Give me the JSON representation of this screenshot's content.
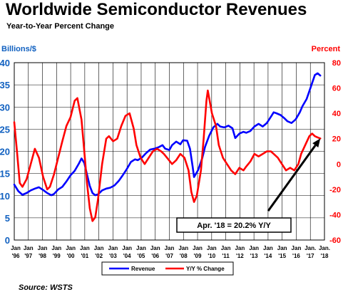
{
  "header": {
    "title": "Worldwide Semiconductor Revenues",
    "subtitle": "Year-to-Year Percent Change"
  },
  "footer": {
    "source": "Source: WSTS"
  },
  "chart_data": {
    "type": "line",
    "left_axis_label": "Billions/$",
    "right_axis_label": "Percent",
    "left_ylim": [
      0,
      40
    ],
    "left_ticks": [
      0,
      5,
      10,
      15,
      20,
      25,
      30,
      35,
      40
    ],
    "right_ylim": [
      -60,
      80
    ],
    "right_ticks": [
      -60,
      -40,
      -20,
      0,
      20,
      40,
      60,
      80
    ],
    "x_range": [
      1996,
      2018.6
    ],
    "x_ticks": [
      {
        "month": "Jan",
        "year": "'96"
      },
      {
        "month": "Jan",
        "year": "'97"
      },
      {
        "month": "Jan",
        "year": "'98"
      },
      {
        "month": "Jan",
        "year": "'99"
      },
      {
        "month": "Jan",
        "year": "'00"
      },
      {
        "month": "Jan",
        "year": "'01"
      },
      {
        "month": "Jan",
        "year": "'02"
      },
      {
        "month": "Jan",
        "year": "'03"
      },
      {
        "month": "Jan",
        "year": "'04"
      },
      {
        "month": "Jan",
        "year": "'05"
      },
      {
        "month": "Jan",
        "year": "'06"
      },
      {
        "month": "Jan",
        "year": "'07"
      },
      {
        "month": "Jan",
        "year": "'08"
      },
      {
        "month": "Jan",
        "year": "'09"
      },
      {
        "month": "Jan",
        "year": "'10"
      },
      {
        "month": "Jan",
        "year": "'11"
      },
      {
        "month": "Jan",
        "year": "'12"
      },
      {
        "month": "Jan",
        "year": "'13"
      },
      {
        "month": "Jan",
        "year": "'14"
      },
      {
        "month": "Jan",
        "year": "'15"
      },
      {
        "month": "Jan",
        "year": "'16"
      },
      {
        "month": "Jan.",
        "year": "'17"
      },
      {
        "month": "Jan.",
        "year": "'18"
      }
    ],
    "grid": true,
    "legend_position": "bottom",
    "series": [
      {
        "name": "Revenue",
        "axis": "left",
        "color": "#0000ff",
        "points": [
          [
            1996.0,
            12.5
          ],
          [
            1996.3,
            11.0
          ],
          [
            1996.6,
            10.2
          ],
          [
            1996.9,
            10.6
          ],
          [
            1997.2,
            11.2
          ],
          [
            1997.5,
            11.6
          ],
          [
            1997.8,
            11.9
          ],
          [
            1998.1,
            11.3
          ],
          [
            1998.4,
            10.6
          ],
          [
            1998.7,
            10.1
          ],
          [
            1998.9,
            10.4
          ],
          [
            1999.2,
            11.4
          ],
          [
            1999.5,
            12.0
          ],
          [
            1999.8,
            13.2
          ],
          [
            2000.1,
            14.6
          ],
          [
            2000.4,
            15.6
          ],
          [
            2000.7,
            17.2
          ],
          [
            2000.9,
            18.4
          ],
          [
            2001.1,
            17.4
          ],
          [
            2001.3,
            14.8
          ],
          [
            2001.5,
            12.2
          ],
          [
            2001.7,
            10.6
          ],
          [
            2001.9,
            10.1
          ],
          [
            2002.1,
            10.3
          ],
          [
            2002.4,
            11.2
          ],
          [
            2002.7,
            11.6
          ],
          [
            2003.0,
            11.8
          ],
          [
            2003.3,
            12.3
          ],
          [
            2003.6,
            13.3
          ],
          [
            2003.9,
            14.6
          ],
          [
            2004.2,
            16.0
          ],
          [
            2004.5,
            17.6
          ],
          [
            2004.8,
            18.2
          ],
          [
            2005.0,
            18.0
          ],
          [
            2005.3,
            18.6
          ],
          [
            2005.6,
            19.6
          ],
          [
            2005.9,
            20.4
          ],
          [
            2006.2,
            20.6
          ],
          [
            2006.5,
            20.9
          ],
          [
            2006.8,
            21.4
          ],
          [
            2007.0,
            20.6
          ],
          [
            2007.3,
            20.3
          ],
          [
            2007.5,
            21.4
          ],
          [
            2007.8,
            22.2
          ],
          [
            2008.1,
            21.6
          ],
          [
            2008.3,
            22.5
          ],
          [
            2008.6,
            22.4
          ],
          [
            2008.8,
            20.6
          ],
          [
            2009.0,
            16.5
          ],
          [
            2009.1,
            14.2
          ],
          [
            2009.4,
            15.8
          ],
          [
            2009.7,
            18.5
          ],
          [
            2009.9,
            21.0
          ],
          [
            2010.2,
            23.5
          ],
          [
            2010.5,
            25.4
          ],
          [
            2010.8,
            26.2
          ],
          [
            2011.0,
            25.6
          ],
          [
            2011.3,
            25.4
          ],
          [
            2011.6,
            25.8
          ],
          [
            2011.9,
            25.2
          ],
          [
            2012.1,
            23.0
          ],
          [
            2012.4,
            24.0
          ],
          [
            2012.7,
            24.4
          ],
          [
            2012.9,
            24.2
          ],
          [
            2013.2,
            24.6
          ],
          [
            2013.5,
            25.6
          ],
          [
            2013.8,
            26.2
          ],
          [
            2014.1,
            25.6
          ],
          [
            2014.4,
            26.4
          ],
          [
            2014.7,
            27.8
          ],
          [
            2014.9,
            28.8
          ],
          [
            2015.1,
            28.6
          ],
          [
            2015.4,
            28.2
          ],
          [
            2015.7,
            27.4
          ],
          [
            2015.9,
            26.8
          ],
          [
            2016.2,
            26.4
          ],
          [
            2016.5,
            27.2
          ],
          [
            2016.8,
            28.8
          ],
          [
            2017.0,
            30.2
          ],
          [
            2017.3,
            31.8
          ],
          [
            2017.6,
            34.5
          ],
          [
            2017.9,
            37.2
          ],
          [
            2018.1,
            37.6
          ],
          [
            2018.3,
            37.1
          ]
        ]
      },
      {
        "name": "Y/Y % Change",
        "axis": "right",
        "color": "#ff0000",
        "points": [
          [
            1996.0,
            33
          ],
          [
            1996.2,
            10
          ],
          [
            1996.4,
            -15
          ],
          [
            1996.6,
            -18
          ],
          [
            1996.9,
            -12
          ],
          [
            1997.2,
            0
          ],
          [
            1997.5,
            12
          ],
          [
            1997.8,
            5
          ],
          [
            1998.1,
            -10
          ],
          [
            1998.4,
            -20
          ],
          [
            1998.6,
            -18
          ],
          [
            1998.9,
            -8
          ],
          [
            1999.2,
            5
          ],
          [
            1999.5,
            18
          ],
          [
            1999.8,
            30
          ],
          [
            2000.1,
            37
          ],
          [
            2000.4,
            50
          ],
          [
            2000.6,
            52
          ],
          [
            2000.9,
            35
          ],
          [
            2001.1,
            10
          ],
          [
            2001.3,
            -15
          ],
          [
            2001.5,
            -35
          ],
          [
            2001.7,
            -45
          ],
          [
            2001.9,
            -42
          ],
          [
            2002.1,
            -28
          ],
          [
            2002.4,
            0
          ],
          [
            2002.7,
            20
          ],
          [
            2002.9,
            22
          ],
          [
            2003.2,
            18
          ],
          [
            2003.5,
            20
          ],
          [
            2003.8,
            30
          ],
          [
            2004.1,
            38
          ],
          [
            2004.4,
            40
          ],
          [
            2004.7,
            28
          ],
          [
            2004.9,
            15
          ],
          [
            2005.2,
            5
          ],
          [
            2005.5,
            0
          ],
          [
            2005.8,
            5
          ],
          [
            2006.1,
            10
          ],
          [
            2006.4,
            12
          ],
          [
            2006.7,
            10
          ],
          [
            2006.9,
            8
          ],
          [
            2007.2,
            4
          ],
          [
            2007.5,
            0
          ],
          [
            2007.8,
            3
          ],
          [
            2008.1,
            8
          ],
          [
            2008.4,
            5
          ],
          [
            2008.7,
            -5
          ],
          [
            2008.9,
            -22
          ],
          [
            2009.1,
            -30
          ],
          [
            2009.3,
            -25
          ],
          [
            2009.6,
            -5
          ],
          [
            2009.8,
            20
          ],
          [
            2010.0,
            50
          ],
          [
            2010.1,
            58
          ],
          [
            2010.4,
            40
          ],
          [
            2010.7,
            30
          ],
          [
            2010.9,
            15
          ],
          [
            2011.2,
            5
          ],
          [
            2011.5,
            0
          ],
          [
            2011.8,
            -5
          ],
          [
            2012.1,
            -8
          ],
          [
            2012.4,
            -3
          ],
          [
            2012.7,
            -5
          ],
          [
            2012.9,
            -2
          ],
          [
            2013.2,
            2
          ],
          [
            2013.5,
            8
          ],
          [
            2013.8,
            6
          ],
          [
            2014.1,
            8
          ],
          [
            2014.4,
            10
          ],
          [
            2014.7,
            10
          ],
          [
            2014.9,
            8
          ],
          [
            2015.2,
            5
          ],
          [
            2015.5,
            0
          ],
          [
            2015.8,
            -5
          ],
          [
            2016.1,
            -3
          ],
          [
            2016.4,
            -5
          ],
          [
            2016.7,
            0
          ],
          [
            2016.9,
            8
          ],
          [
            2017.2,
            15
          ],
          [
            2017.5,
            22
          ],
          [
            2017.7,
            24
          ],
          [
            2017.9,
            22
          ],
          [
            2018.1,
            21
          ],
          [
            2018.3,
            20.2
          ]
        ]
      }
    ],
    "annotation": {
      "text": "Apr. '18 = 20.2% Y/Y",
      "arrow_from": [
        2014.5,
        -37
      ],
      "arrow_to": [
        2018.3,
        20.2
      ]
    }
  }
}
